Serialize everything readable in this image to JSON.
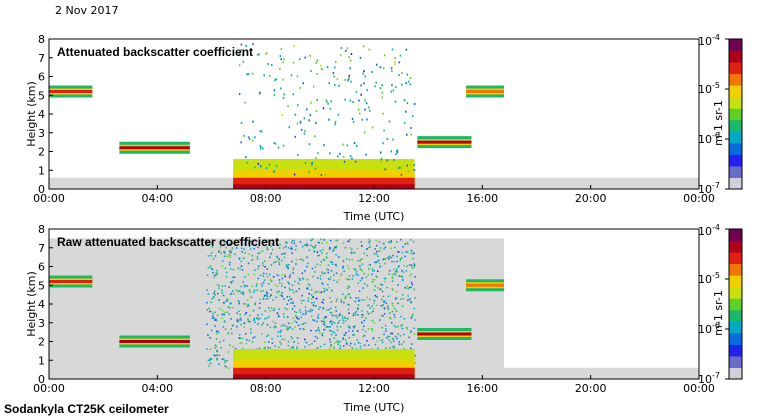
{
  "header": {
    "date": "2 Nov 2017"
  },
  "footer": {
    "instrument": "Sodankyla CT25K ceilometer"
  },
  "colors": {
    "background_gray": "#d8d8d8",
    "colorbar": [
      "#d0d0d8",
      "#6a6acc",
      "#2222ee",
      "#0a6cdc",
      "#00a8c4",
      "#19b86a",
      "#5fd02a",
      "#c8e010",
      "#f2d000",
      "#f07800",
      "#e02010",
      "#b0001a",
      "#700050"
    ]
  },
  "chart_data": [
    {
      "type": "heatmap",
      "title": "Attenuated backscatter coefficient",
      "xlabel": "Time (UTC)",
      "ylabel": "Height (km)",
      "x_ticks": [
        "00:00",
        "04:00",
        "08:00",
        "12:00",
        "16:00",
        "20:00",
        "00:00"
      ],
      "x_range_hours": [
        0,
        24
      ],
      "y_ticks": [
        "0",
        "1",
        "2",
        "3",
        "4",
        "5",
        "6",
        "7",
        "8"
      ],
      "y_range_km": [
        0,
        8
      ],
      "colorbar": {
        "label": "m-1 sr-1",
        "top_label": "10",
        "top_exp": "-4",
        "ticks": [
          {
            "base": "10",
            "exp": "-4",
            "value": 0.0001
          },
          {
            "base": "10",
            "exp": "-5",
            "value": 1e-05
          },
          {
            "base": "10",
            "exp": "-6",
            "value": 1e-06
          },
          {
            "base": "10",
            "exp": "-7",
            "value": 1e-07
          }
        ],
        "scale": "log",
        "range": [
          1e-07,
          0.0001
        ]
      },
      "features": [
        {
          "name": "elevated layer",
          "t_start_h": 0.0,
          "t_end_h": 1.6,
          "height_km": 5.2,
          "level": 0.85
        },
        {
          "name": "boundary layer top",
          "t_start_h": 2.6,
          "t_end_h": 5.2,
          "height_km": 2.2,
          "level": 0.9
        },
        {
          "name": "low cloud",
          "t_start_h": 6.8,
          "t_end_h": 13.5,
          "height_km": 0.3,
          "level": 0.9
        },
        {
          "name": "cloud top",
          "t_start_h": 13.6,
          "t_end_h": 15.6,
          "height_km": 2.5,
          "level": 0.9
        },
        {
          "name": "high cloud",
          "t_start_h": 15.4,
          "t_end_h": 16.8,
          "height_km": 5.2,
          "level": 0.75
        }
      ]
    },
    {
      "type": "heatmap",
      "title": "Raw attenuated backscatter coefficient",
      "xlabel": "Time (UTC)",
      "ylabel": "Height (km)",
      "x_ticks": [
        "00:00",
        "04:00",
        "08:00",
        "12:00",
        "16:00",
        "20:00",
        "00:00"
      ],
      "x_range_hours": [
        0,
        24
      ],
      "y_ticks": [
        "0",
        "1",
        "2",
        "3",
        "4",
        "5",
        "6",
        "7",
        "8"
      ],
      "y_range_km": [
        0,
        8
      ],
      "colorbar": {
        "label": "m-1 sr-1",
        "top_label": "10",
        "top_exp": "-4",
        "ticks": [
          {
            "base": "10",
            "exp": "-4",
            "value": 0.0001
          },
          {
            "base": "10",
            "exp": "-5",
            "value": 1e-05
          },
          {
            "base": "10",
            "exp": "-6",
            "value": 1e-06
          },
          {
            "base": "10",
            "exp": "-7",
            "value": 1e-07
          }
        ],
        "scale": "log",
        "range": [
          1e-07,
          0.0001
        ]
      },
      "features": [
        {
          "name": "elevated layer",
          "t_start_h": 0.0,
          "t_end_h": 1.6,
          "height_km": 5.2,
          "level": 0.85
        },
        {
          "name": "boundary layer top",
          "t_start_h": 2.6,
          "t_end_h": 5.2,
          "height_km": 2.0,
          "level": 0.9
        },
        {
          "name": "noise region",
          "t_start_h": 5.8,
          "t_end_h": 13.5,
          "height_km": 7.5,
          "level": 0.35
        },
        {
          "name": "low cloud",
          "t_start_h": 6.8,
          "t_end_h": 13.5,
          "height_km": 0.3,
          "level": 0.9
        },
        {
          "name": "cloud top",
          "t_start_h": 13.6,
          "t_end_h": 15.6,
          "height_km": 2.4,
          "level": 0.9
        },
        {
          "name": "high cloud",
          "t_start_h": 15.4,
          "t_end_h": 16.8,
          "height_km": 5.0,
          "level": 0.75
        }
      ]
    }
  ]
}
